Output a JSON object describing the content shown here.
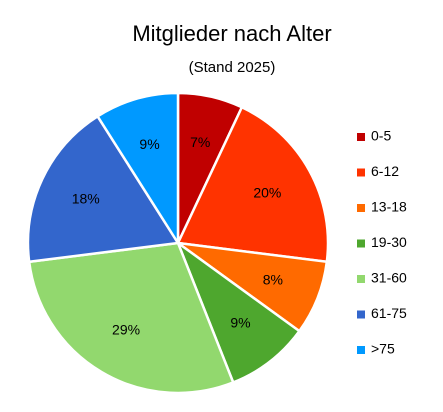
{
  "chart_data": {
    "type": "pie",
    "title": "Mitglieder nach Alter",
    "subtitle": "(Stand 2025)",
    "categories": [
      "0-5",
      "6-12",
      "13-18",
      "19-30",
      "31-60",
      "61-75",
      ">75"
    ],
    "values": [
      7,
      20,
      8,
      9,
      29,
      18,
      9
    ],
    "value_labels": [
      "7%",
      "20%",
      "8%",
      "9%",
      "29%",
      "18%",
      "9%"
    ],
    "colors": [
      "#c00000",
      "#ff3300",
      "#ff6a00",
      "#4ea72e",
      "#92d86e",
      "#3366cc",
      "#0099ff"
    ],
    "legend": "right"
  }
}
